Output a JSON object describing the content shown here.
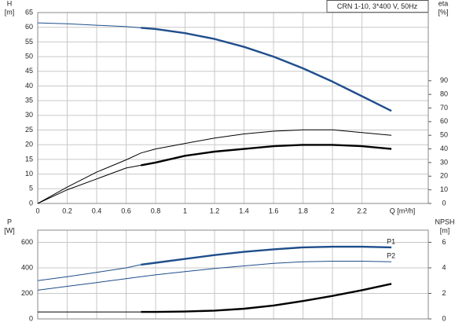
{
  "chart_data": [
    {
      "type": "line",
      "title": "CRN 1-10, 3*400 V, 50Hz",
      "y_label": "H",
      "y_unit": "[m]",
      "y2_label": "eta",
      "y2_unit": "[%]",
      "x_label": "Q [m³/h]",
      "x": [
        0,
        0.2,
        0.4,
        0.6,
        0.7,
        0.8,
        1.0,
        1.2,
        1.4,
        1.6,
        1.8,
        2.0,
        2.2,
        2.4
      ],
      "xlim": [
        0,
        2.65
      ],
      "xticks": [
        0,
        0.2,
        0.4,
        0.6,
        0.8,
        1.0,
        1.2,
        1.4,
        1.6,
        1.8,
        2.0,
        2.2
      ],
      "ylim": [
        0,
        65
      ],
      "yticks": [
        0,
        5,
        10,
        15,
        20,
        25,
        30,
        35,
        40,
        45,
        50,
        55,
        60,
        65
      ],
      "y2lim": [
        0,
        140
      ],
      "y2ticks": [
        0,
        10,
        20,
        30,
        40,
        50,
        60,
        70,
        80,
        90
      ],
      "grid": true,
      "series": [
        {
          "color": "#1f4e8c",
          "thick": false,
          "values": [
            61.5,
            61.2,
            60.7,
            60.2,
            59.8,
            null,
            null,
            null,
            null,
            null,
            null,
            null,
            null,
            null
          ]
        },
        {
          "color": "#1f4e8c",
          "thick": true,
          "values": [
            null,
            null,
            null,
            null,
            59.8,
            59.4,
            58,
            56,
            53.3,
            50,
            46,
            41.5,
            36.5,
            31.5
          ]
        },
        {
          "color": "#000000",
          "thick": false,
          "axis": "y2",
          "values": [
            0,
            12,
            23,
            32,
            37,
            40,
            44,
            48,
            51,
            53,
            54,
            54,
            52,
            50
          ]
        },
        {
          "color": "#000000",
          "thick": false,
          "axis": "y2",
          "values": [
            0,
            10,
            18,
            26,
            28,
            null,
            null,
            null,
            null,
            null,
            null,
            null,
            null,
            null
          ]
        },
        {
          "color": "#000000",
          "thick": true,
          "axis": "y2",
          "values": [
            null,
            null,
            null,
            null,
            28,
            30,
            35,
            38,
            40,
            42,
            43,
            43,
            42,
            40
          ]
        }
      ]
    },
    {
      "type": "line",
      "y_label": "P",
      "y_unit": "[W]",
      "y2_label": "NPSH",
      "y2_unit": "[m]",
      "x": [
        0,
        0.2,
        0.4,
        0.6,
        0.7,
        0.8,
        1.0,
        1.2,
        1.4,
        1.6,
        1.8,
        2.0,
        2.2,
        2.4
      ],
      "xlim": [
        0,
        2.65
      ],
      "ylim": [
        0,
        695
      ],
      "yticks": [
        0,
        200,
        400,
        600
      ],
      "y2lim": [
        0,
        6.95
      ],
      "y2ticks": [
        0,
        2,
        4,
        6
      ],
      "grid": true,
      "series": [
        {
          "color": "#1f4e8c",
          "thick": false,
          "values": [
            300,
            330,
            365,
            400,
            425,
            null,
            null,
            null,
            null,
            null,
            null,
            null,
            null,
            null
          ]
        },
        {
          "name": "P1",
          "color": "#1f4e8c",
          "thick": true,
          "values": [
            null,
            null,
            null,
            null,
            425,
            440,
            470,
            500,
            525,
            545,
            560,
            565,
            565,
            560
          ]
        },
        {
          "name": "P2",
          "color": "#1f4e8c",
          "thick": false,
          "values": [
            225,
            255,
            285,
            315,
            330,
            345,
            370,
            395,
            415,
            435,
            448,
            452,
            452,
            448
          ]
        },
        {
          "color": "#000000",
          "thick": false,
          "axis": "y2",
          "values": [
            0.55,
            0.55,
            0.55,
            0.55,
            0.55,
            null,
            null,
            null,
            null,
            null,
            null,
            null,
            null,
            null
          ]
        },
        {
          "color": "#000000",
          "thick": true,
          "axis": "y2",
          "values": [
            null,
            null,
            null,
            null,
            0.55,
            0.55,
            0.58,
            0.65,
            0.8,
            1.05,
            1.4,
            1.8,
            2.25,
            2.75
          ]
        }
      ]
    }
  ]
}
